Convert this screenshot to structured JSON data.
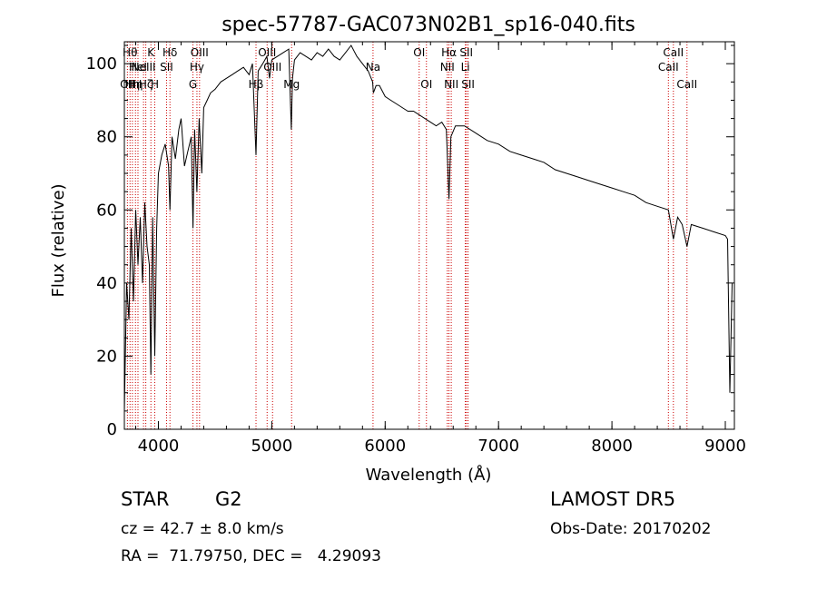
{
  "chart_data": {
    "type": "line",
    "title": "spec-57787-GAC073N02B1_sp16-040.fits",
    "xlabel": "Wavelength (Å)",
    "ylabel": "Flux (relative)",
    "xlim": [
      3700,
      9080
    ],
    "ylim": [
      0,
      106
    ],
    "x_ticks": [
      4000,
      5000,
      6000,
      7000,
      8000,
      9000
    ],
    "y_ticks": [
      0,
      20,
      40,
      60,
      80,
      100
    ],
    "grid": false,
    "series": [
      {
        "x": [
          3700,
          3720,
          3740,
          3760,
          3780,
          3800,
          3820,
          3840,
          3860,
          3880,
          3900,
          3920,
          3934,
          3950,
          3968,
          3985,
          4000,
          4030,
          4060,
          4090,
          4102,
          4120,
          4150,
          4180,
          4200,
          4230,
          4260,
          4290,
          4305,
          4320,
          4340,
          4360,
          4383,
          4400,
          4430,
          4460,
          4500,
          4550,
          4600,
          4650,
          4700,
          4750,
          4800,
          4830,
          4861,
          4880,
          4920,
          4957,
          4980,
          5000,
          5050,
          5100,
          5150,
          5172,
          5183,
          5200,
          5250,
          5300,
          5350,
          5400,
          5450,
          5500,
          5550,
          5600,
          5650,
          5700,
          5750,
          5800,
          5850,
          5890,
          5896,
          5920,
          5950,
          6000,
          6050,
          6100,
          6150,
          6200,
          6250,
          6300,
          6350,
          6400,
          6450,
          6500,
          6540,
          6563,
          6580,
          6620,
          6700,
          6800,
          6900,
          7000,
          7100,
          7200,
          7300,
          7400,
          7500,
          7600,
          7700,
          7800,
          7900,
          8000,
          8100,
          8200,
          8300,
          8400,
          8498,
          8542,
          8580,
          8620,
          8662,
          8700,
          8800,
          8900,
          9000,
          9020,
          9040,
          9060
        ],
        "y": [
          5,
          40,
          30,
          55,
          35,
          60,
          45,
          58,
          40,
          62,
          50,
          45,
          15,
          58,
          20,
          55,
          70,
          75,
          78,
          72,
          60,
          80,
          74,
          82,
          85,
          72,
          76,
          80,
          55,
          82,
          65,
          85,
          70,
          88,
          90,
          92,
          93,
          95,
          96,
          97,
          98,
          99,
          97,
          100,
          75,
          98,
          100,
          102,
          96,
          101,
          102,
          103,
          104,
          82,
          96,
          101,
          103,
          102,
          101,
          103,
          102,
          104,
          102,
          101,
          103,
          105,
          102,
          100,
          98,
          95,
          92,
          94,
          94,
          91,
          90,
          89,
          88,
          87,
          87,
          86,
          85,
          84,
          83,
          84,
          82,
          63,
          80,
          83,
          83,
          81,
          79,
          78,
          76,
          75,
          74,
          73,
          71,
          70,
          69,
          68,
          67,
          66,
          65,
          64,
          62,
          61,
          60,
          52,
          58,
          56,
          50,
          56,
          55,
          54,
          53,
          52,
          10,
          40
        ]
      }
    ],
    "lines": [
      {
        "x": 3727,
        "label": "OII",
        "row": 3
      },
      {
        "x": 3750,
        "label": "Hθ",
        "row": 1
      },
      {
        "x": 3771,
        "label": "Hη",
        "row": 3
      },
      {
        "x": 3798,
        "label": "Hη",
        "row": 3
      },
      {
        "x": 3820,
        "label": "HeI",
        "row": 2
      },
      {
        "x": 3869,
        "label": "NeIII",
        "row": 2
      },
      {
        "x": 3889,
        "label": "Hζ",
        "row": 3
      },
      {
        "x": 3934,
        "label": "K",
        "row": 1
      },
      {
        "x": 3968,
        "label": "H",
        "row": 3
      },
      {
        "x": 4072,
        "label": "SII",
        "row": 2
      },
      {
        "x": 4102,
        "label": "Hδ",
        "row": 1
      },
      {
        "x": 4305,
        "label": "G",
        "row": 3
      },
      {
        "x": 4340,
        "label": "Hγ",
        "row": 2
      },
      {
        "x": 4363,
        "label": "OIII",
        "row": 1
      },
      {
        "x": 4861,
        "label": "Hβ",
        "row": 3
      },
      {
        "x": 4959,
        "label": "OIII",
        "row": 1
      },
      {
        "x": 5007,
        "label": "OIII",
        "row": 2
      },
      {
        "x": 5175,
        "label": "Mg",
        "row": 3
      },
      {
        "x": 5893,
        "label": "Na",
        "row": 2
      },
      {
        "x": 6300,
        "label": "OI",
        "row": 1
      },
      {
        "x": 6364,
        "label": "OI",
        "row": 3
      },
      {
        "x": 6548,
        "label": "NII",
        "row": 2
      },
      {
        "x": 6563,
        "label": "Hα",
        "row": 1
      },
      {
        "x": 6583,
        "label": "NII",
        "row": 3
      },
      {
        "x": 6707,
        "label": "Li",
        "row": 2
      },
      {
        "x": 6716,
        "label": "SII",
        "row": 1
      },
      {
        "x": 6731,
        "label": "SII",
        "row": 3
      },
      {
        "x": 8498,
        "label": "CaII",
        "row": 2
      },
      {
        "x": 8542,
        "label": "CaII",
        "row": 1
      },
      {
        "x": 8662,
        "label": "CaII",
        "row": 3
      }
    ]
  },
  "info": {
    "object_type": "STAR",
    "subclass": "G2",
    "survey": "LAMOST DR5",
    "cz": "cz = 42.7 ± 8.0 km/s",
    "obs_date": "Obs-Date: 20170202",
    "radec": "RA =  71.79750, DEC =   4.29093"
  },
  "colors": {
    "spectrum": "#000000",
    "line_markers": "#cc0000",
    "axes": "#000000"
  }
}
